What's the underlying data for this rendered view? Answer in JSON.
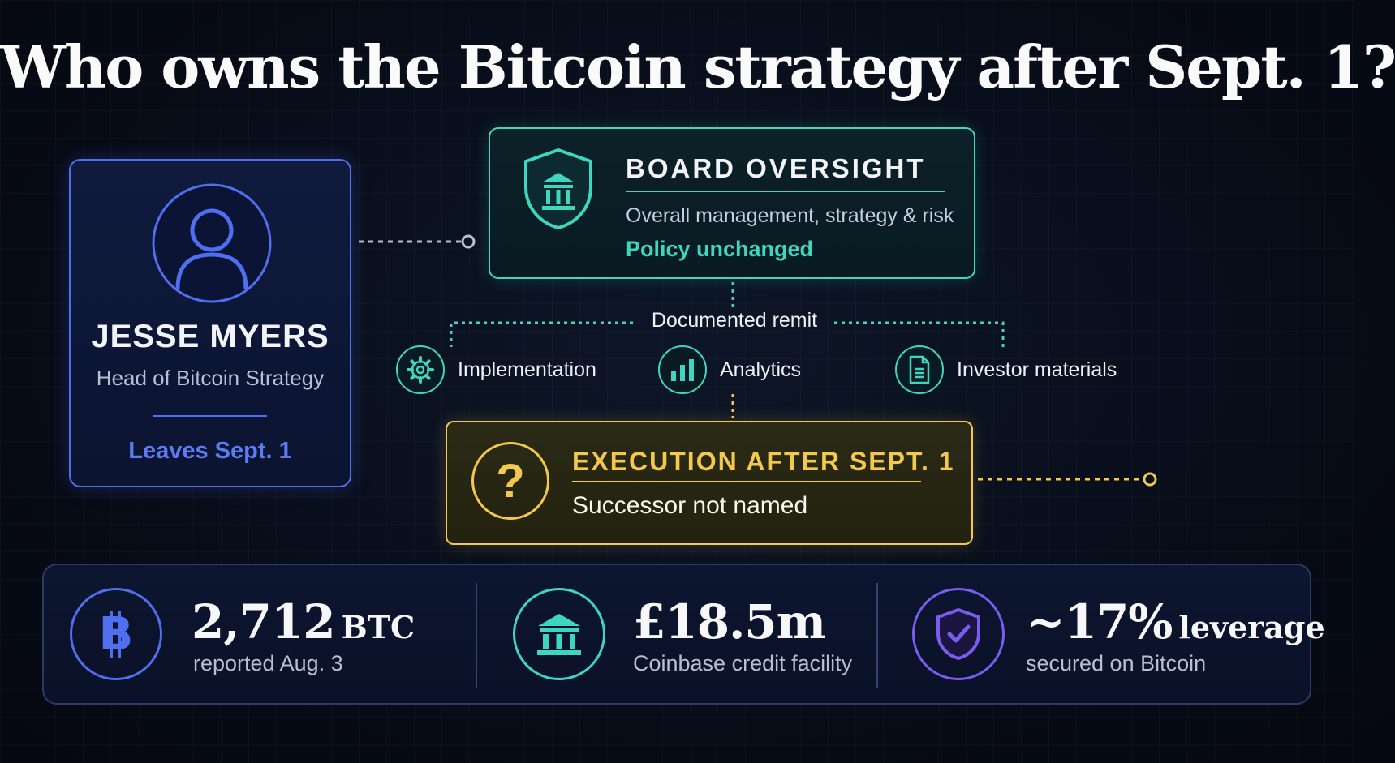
{
  "title": "Who owns the Bitcoin strategy after Sept. 1?",
  "person": {
    "name": "JESSE MYERS",
    "role": "Head of Bitcoin Strategy",
    "status": "Leaves Sept. 1",
    "icon": "user-icon"
  },
  "board": {
    "title": "BOARD OVERSIGHT",
    "description": "Overall management, strategy & risk",
    "status": "Policy unchanged",
    "icon": "bank-shield-icon"
  },
  "remit": {
    "label": "Documented remit",
    "items": [
      {
        "label": "Implementation",
        "icon": "gear-icon"
      },
      {
        "label": "Analytics",
        "icon": "bar-chart-icon"
      },
      {
        "label": "Investor materials",
        "icon": "document-icon"
      }
    ]
  },
  "execution": {
    "title": "EXECUTION AFTER SEPT. 1",
    "status": "Successor not named",
    "icon": "question-icon"
  },
  "stats": [
    {
      "value": "2,712",
      "unit": "BTC",
      "label": "reported Aug. 3",
      "icon": "bitcoin-icon"
    },
    {
      "value": "£18.5m",
      "unit": "",
      "label": "Coinbase credit facility",
      "icon": "bank-icon"
    },
    {
      "value": "~17%",
      "unit": "leverage",
      "label": "secured on Bitcoin",
      "icon": "shield-check-icon"
    }
  ],
  "colors": {
    "person": "#4f6ef0",
    "board": "#3fd6bf",
    "execution": "#f2c94c",
    "leverage": "#7b5cf0"
  }
}
